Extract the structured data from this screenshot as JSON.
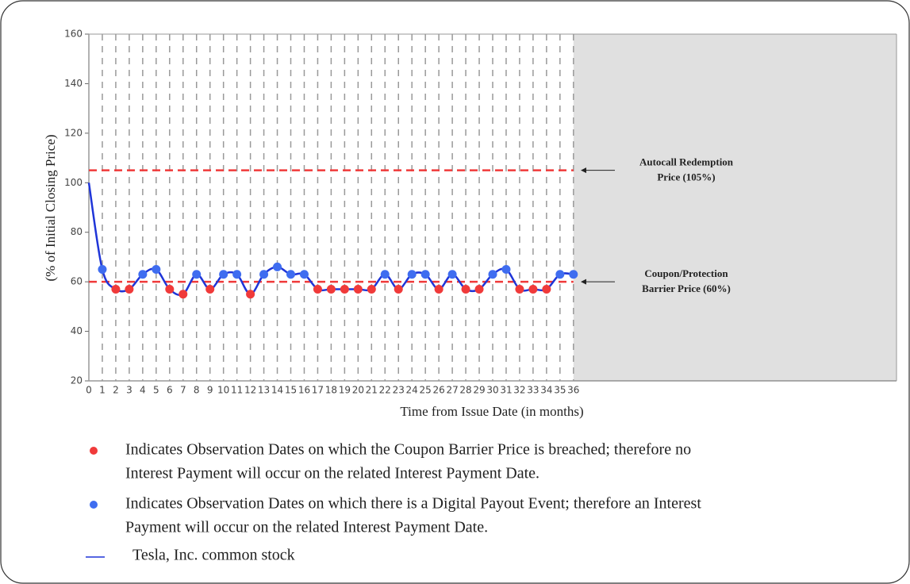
{
  "chart_data": {
    "type": "line",
    "xlabel": "Time from Issue Date (in months)",
    "ylabel": "(% of Initial Closing Price)",
    "x": [
      0,
      1,
      2,
      3,
      4,
      5,
      6,
      7,
      8,
      9,
      10,
      11,
      12,
      13,
      14,
      15,
      16,
      17,
      18,
      19,
      20,
      21,
      22,
      23,
      24,
      25,
      26,
      27,
      28,
      29,
      30,
      31,
      32,
      33,
      34,
      35,
      36
    ],
    "series": [
      {
        "name": "Tesla, Inc. common stock",
        "color": "#1f35d8",
        "values": [
          100,
          65,
          57,
          57,
          63,
          65,
          57,
          55,
          63,
          57,
          63,
          63,
          55,
          63,
          66,
          63,
          63,
          57,
          57,
          57,
          57,
          57,
          63,
          57,
          63,
          63,
          57,
          63,
          57,
          57,
          63,
          65,
          57,
          57,
          57,
          63,
          63
        ]
      }
    ],
    "xlim": [
      0,
      60
    ],
    "xticks": [
      0,
      1,
      2,
      3,
      4,
      5,
      6,
      7,
      8,
      9,
      10,
      11,
      12,
      13,
      14,
      15,
      16,
      17,
      18,
      19,
      20,
      21,
      22,
      23,
      24,
      25,
      26,
      27,
      28,
      29,
      30,
      31,
      32,
      33,
      34,
      35,
      36
    ],
    "ylim": [
      20,
      160
    ],
    "yticks": [
      20,
      40,
      60,
      80,
      100,
      120,
      140,
      160
    ],
    "grid": true,
    "breach_color": "#f03a3a",
    "payout_color": "#3f6df0",
    "reference_lines": [
      {
        "value": 105,
        "color": "#f03a3a",
        "label": [
          "Autocall Redemption",
          "Price (105%)"
        ]
      },
      {
        "value": 60,
        "color": "#f03a3a",
        "label": [
          "Coupon/Protection",
          "Barrier Price (60%)"
        ]
      }
    ],
    "legend_notes": [
      [
        "Indicates Observation Dates on which the Coupon Barrier Price is breached; therefore no",
        "Interest Payment will occur on the related Interest Payment Date."
      ],
      [
        "Indicates Observation Dates on which there is a Digital Payout Event; therefore an Interest",
        "Payment will occur on the related Interest Payment Date."
      ]
    ]
  }
}
